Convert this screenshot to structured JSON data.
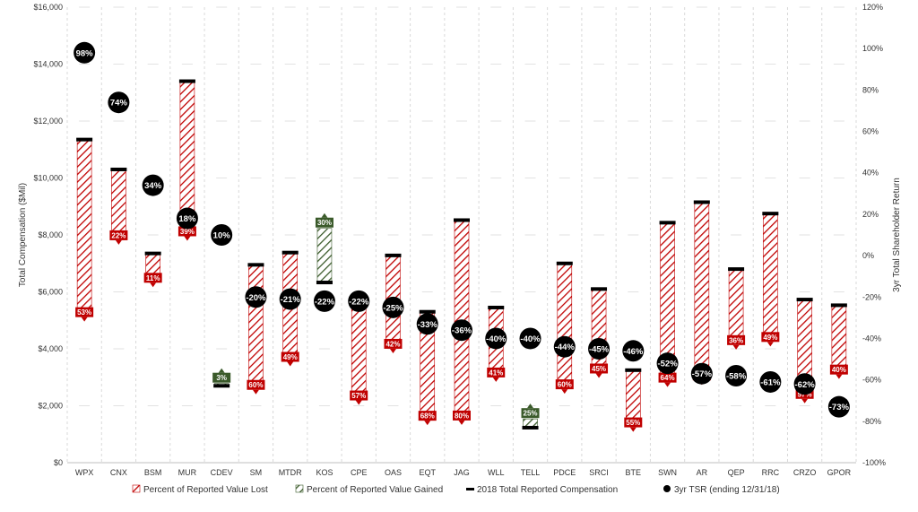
{
  "chart_data": {
    "type": "bar",
    "title": "",
    "ylabel": "Total Compensation ($Mil)",
    "y2label": "3yr Total Shareholder Return",
    "ylim": [
      0,
      16000
    ],
    "y2lim": [
      -100,
      120
    ],
    "y_ticks": [
      "$0",
      "$2,000",
      "$4,000",
      "$6,000",
      "$8,000",
      "$10,000",
      "$12,000",
      "$14,000",
      "$16,000"
    ],
    "y2_ticks": [
      "-100%",
      "-80%",
      "-60%",
      "-40%",
      "-20%",
      "0%",
      "20%",
      "40%",
      "60%",
      "80%",
      "100%",
      "120%"
    ],
    "grid": "vertical",
    "legend_position": "bottom",
    "legend": [
      {
        "key": "lost",
        "label": "Percent of Reported Value Lost",
        "color": "#c00000"
      },
      {
        "key": "gained",
        "label": "Percent of Reported Value Gained",
        "color": "#3a5a2a"
      },
      {
        "key": "reported",
        "label": "2018 Total Reported Compensation",
        "color": "#000000"
      },
      {
        "key": "tsr",
        "label": "3yr TSR (ending 12/31/18)",
        "color": "#000000"
      }
    ],
    "categories": [
      "WPX",
      "CNX",
      "BSM",
      "MUR",
      "CDEV",
      "SM",
      "MTDR",
      "KOS",
      "CPE",
      "OAS",
      "EQT",
      "JAG",
      "WLL",
      "TELL",
      "PDCE",
      "SRCI",
      "BTE",
      "SWN",
      "AR",
      "QEP",
      "RRC",
      "CRZO",
      "GPOR"
    ],
    "series": [
      {
        "name": "2018 Total Reported Compensation",
        "values": [
          11350,
          10300,
          7350,
          13400,
          2700,
          6950,
          7380,
          6330,
          5600,
          7280,
          5300,
          8520,
          5450,
          1230,
          7000,
          6100,
          3250,
          8430,
          9150,
          6800,
          8750,
          5730,
          5530
        ]
      },
      {
        "name": "Percent of Reported Value Lost",
        "values": [
          "53%",
          "22%",
          "11%",
          "39%",
          "",
          "60%",
          "49%",
          "",
          "57%",
          "42%",
          "68%",
          "80%",
          "41%",
          "",
          "60%",
          "45%",
          "55%",
          "64%",
          "66%",
          "36%",
          "49%",
          "57%",
          "40%"
        ]
      },
      {
        "name": "Percent of Reported Value Gained",
        "values": [
          "",
          "",
          "",
          "",
          "3%",
          "",
          "",
          "30%",
          "",
          "",
          "",
          "",
          "",
          "25%",
          "",
          "",
          "",
          "",
          "",
          "",
          "",
          "",
          ""
        ]
      },
      {
        "name": "3yr TSR (ending 12/31/18)",
        "values": [
          98,
          74,
          34,
          18,
          10,
          -20,
          -21,
          -22,
          -22,
          -25,
          -33,
          -36,
          -40,
          -40,
          -44,
          -45,
          -46,
          -52,
          -57,
          -58,
          -61,
          -62,
          -73
        ]
      }
    ],
    "value_direction": [
      -1,
      -1,
      -1,
      -1,
      1,
      -1,
      -1,
      1,
      -1,
      -1,
      -1,
      -1,
      -1,
      1,
      -1,
      -1,
      -1,
      -1,
      -1,
      -1,
      -1,
      -1,
      -1
    ],
    "value_change_pct": [
      53,
      22,
      11,
      39,
      3,
      60,
      49,
      30,
      57,
      42,
      68,
      80,
      41,
      25,
      60,
      45,
      55,
      64,
      66,
      36,
      49,
      57,
      40
    ],
    "value_change_labels": [
      "53%",
      "22%",
      "11%",
      "39%",
      "3%",
      "60%",
      "49%",
      "30%",
      "57%",
      "42%",
      "68%",
      "80%",
      "41%",
      "25%",
      "60%",
      "45%",
      "55%",
      "64%",
      "66%",
      "36%",
      "49%",
      "57%",
      "40%"
    ],
    "tsr_labels": [
      "98%",
      "74%",
      "34%",
      "18%",
      "10%",
      "-20%",
      "-21%",
      "-22%",
      "-22%",
      "-25%",
      "-33%",
      "-36%",
      "-40%",
      "-40%",
      "-44%",
      "-45%",
      "-46%",
      "-52%",
      "-57%",
      "-58%",
      "-61%",
      "-62%",
      "-73%"
    ]
  }
}
